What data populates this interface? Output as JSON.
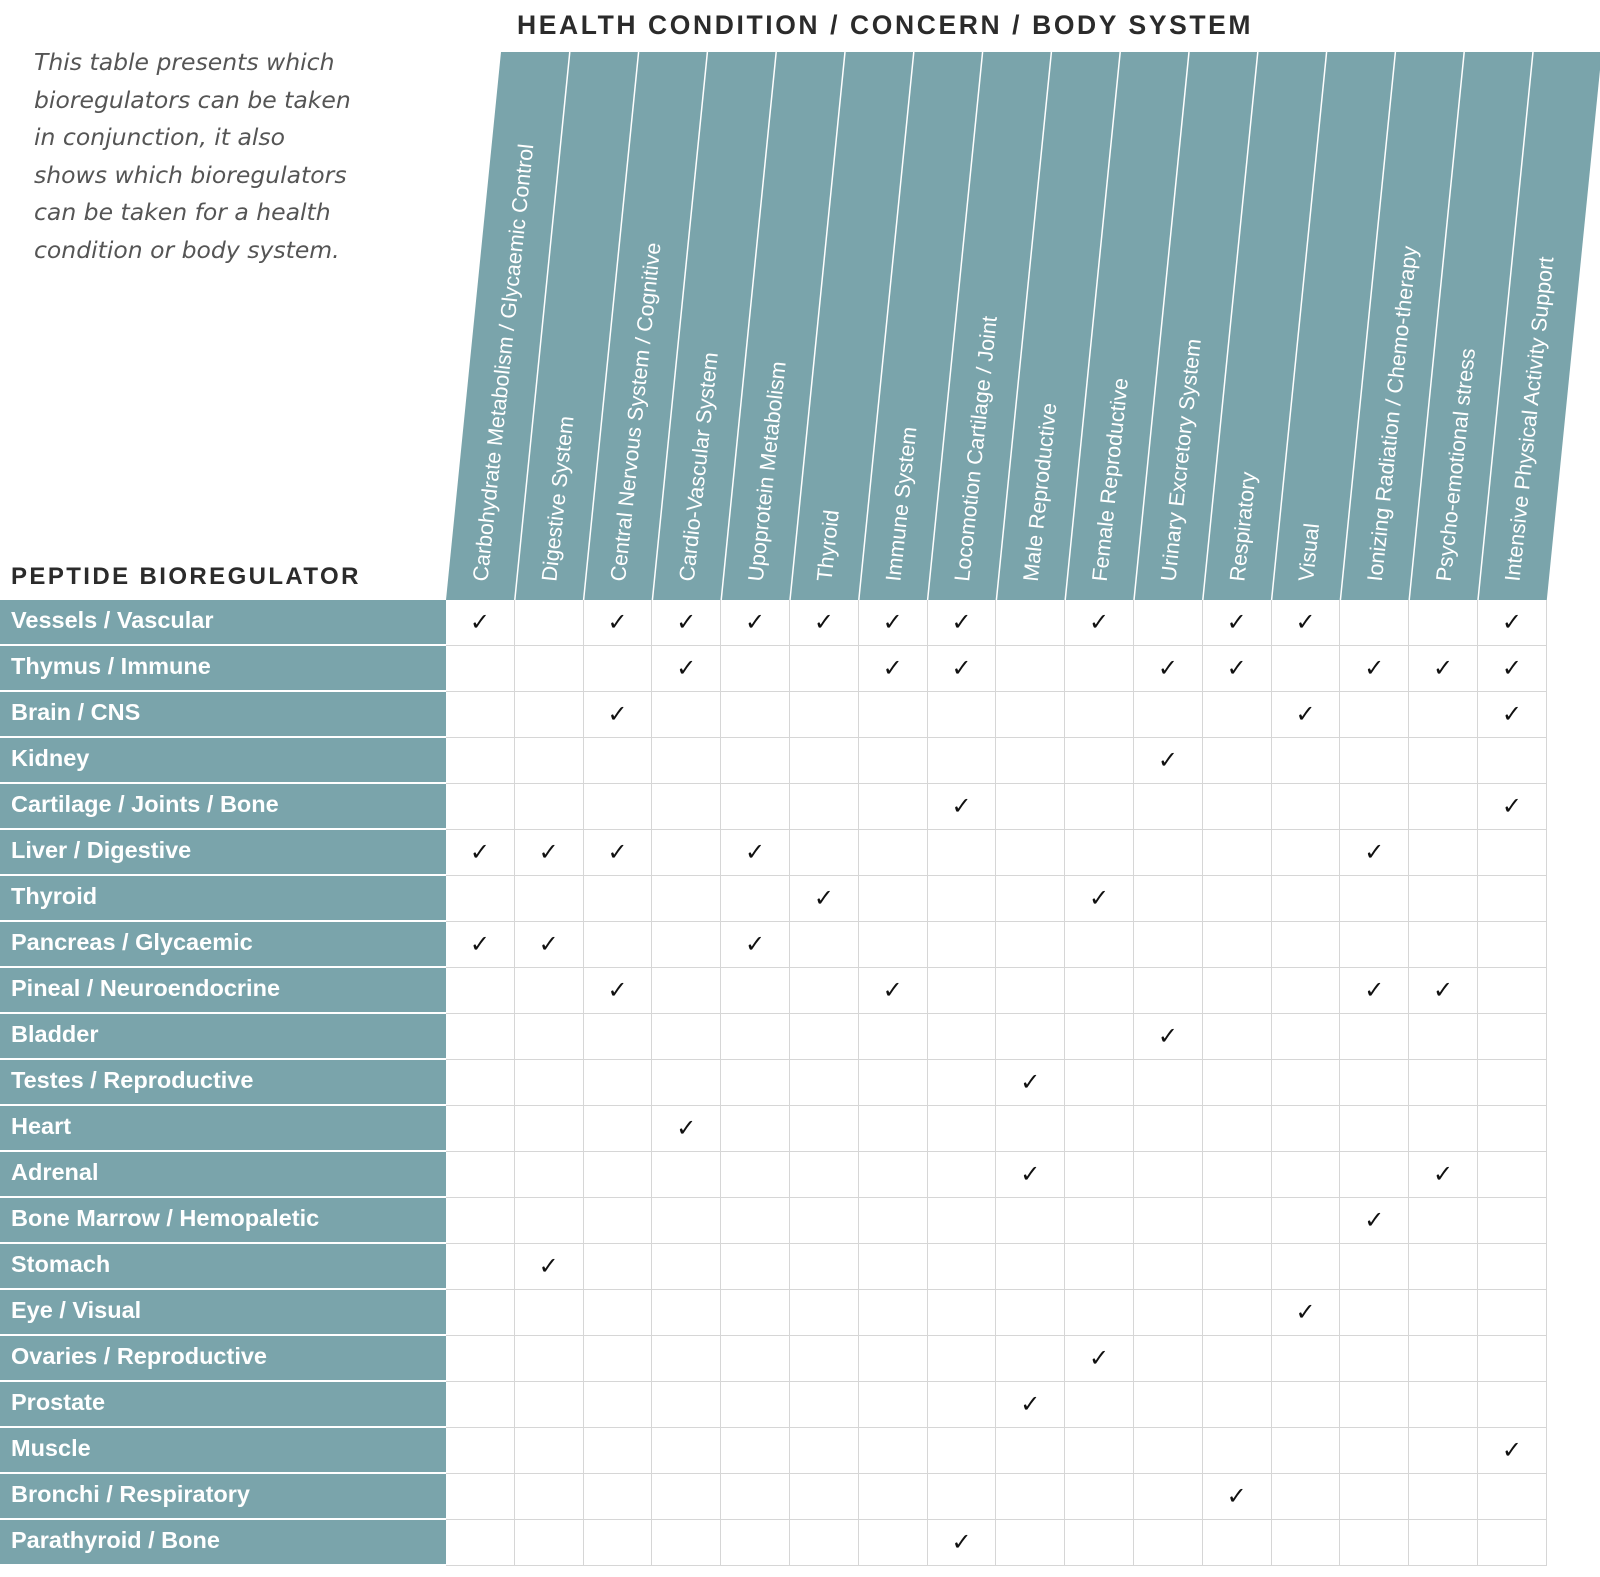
{
  "intro_text": "This table presents which bioregulators can be taken in conjunction, it also shows which bioregulators can be taken for a health condition or body system.",
  "column_heading": "HEALTH CONDITION / CONCERN / BODY SYSTEM",
  "row_heading": "PEPTIDE BIOREGULATOR",
  "check_symbol": "✓",
  "colors": {
    "header_fill": "#7aa4ab",
    "grid_line": "#d6d6d6",
    "heading_text": "#2b2b2b"
  },
  "chart_data": {
    "type": "table",
    "columns": [
      "Carbohydrate Metabolism / Glycaemic Control",
      "Digestive System",
      "Central Nervous System / Cognitive",
      "Cardio-Vascular System",
      "Upoprotein Metabolism",
      "Thyroid",
      "Immune System",
      "Locomotion Cartilage / Joint",
      "Male Reproductive",
      "Female Reproductive",
      "Urinary Excretory System",
      "Respiratory",
      "Visual",
      "Ionizing Radiation / Chemo-therapy",
      "Psycho-emotional stress",
      "Intensive Physical Activity Support"
    ],
    "rows": [
      {
        "label": "Vessels / Vascular",
        "checks": [
          1,
          0,
          1,
          1,
          1,
          1,
          1,
          1,
          0,
          1,
          0,
          1,
          1,
          0,
          0,
          1
        ]
      },
      {
        "label": "Thymus / Immune",
        "checks": [
          0,
          0,
          0,
          1,
          0,
          0,
          1,
          1,
          0,
          0,
          1,
          1,
          0,
          1,
          1,
          1
        ]
      },
      {
        "label": "Brain / CNS",
        "checks": [
          0,
          0,
          1,
          0,
          0,
          0,
          0,
          0,
          0,
          0,
          0,
          0,
          1,
          0,
          0,
          1
        ]
      },
      {
        "label": "Kidney",
        "checks": [
          0,
          0,
          0,
          0,
          0,
          0,
          0,
          0,
          0,
          0,
          1,
          0,
          0,
          0,
          0,
          0
        ]
      },
      {
        "label": "Cartilage / Joints / Bone",
        "checks": [
          0,
          0,
          0,
          0,
          0,
          0,
          0,
          1,
          0,
          0,
          0,
          0,
          0,
          0,
          0,
          1
        ]
      },
      {
        "label": "Liver / Digestive",
        "checks": [
          1,
          1,
          1,
          0,
          1,
          0,
          0,
          0,
          0,
          0,
          0,
          0,
          0,
          1,
          0,
          0
        ]
      },
      {
        "label": "Thyroid",
        "checks": [
          0,
          0,
          0,
          0,
          0,
          1,
          0,
          0,
          0,
          1,
          0,
          0,
          0,
          0,
          0,
          0
        ]
      },
      {
        "label": "Pancreas / Glycaemic",
        "checks": [
          1,
          1,
          0,
          0,
          1,
          0,
          0,
          0,
          0,
          0,
          0,
          0,
          0,
          0,
          0,
          0
        ]
      },
      {
        "label": "Pineal / Neuroendocrine",
        "checks": [
          0,
          0,
          1,
          0,
          0,
          0,
          1,
          0,
          0,
          0,
          0,
          0,
          0,
          1,
          1,
          0
        ]
      },
      {
        "label": "Bladder",
        "checks": [
          0,
          0,
          0,
          0,
          0,
          0,
          0,
          0,
          0,
          0,
          1,
          0,
          0,
          0,
          0,
          0
        ]
      },
      {
        "label": "Testes / Reproductive",
        "checks": [
          0,
          0,
          0,
          0,
          0,
          0,
          0,
          0,
          1,
          0,
          0,
          0,
          0,
          0,
          0,
          0
        ]
      },
      {
        "label": "Heart",
        "checks": [
          0,
          0,
          0,
          1,
          0,
          0,
          0,
          0,
          0,
          0,
          0,
          0,
          0,
          0,
          0,
          0
        ]
      },
      {
        "label": "Adrenal",
        "checks": [
          0,
          0,
          0,
          0,
          0,
          0,
          0,
          0,
          1,
          0,
          0,
          0,
          0,
          0,
          1,
          0
        ]
      },
      {
        "label": "Bone Marrow / Hemopaletic",
        "checks": [
          0,
          0,
          0,
          0,
          0,
          0,
          0,
          0,
          0,
          0,
          0,
          0,
          0,
          1,
          0,
          0
        ]
      },
      {
        "label": "Stomach",
        "checks": [
          0,
          1,
          0,
          0,
          0,
          0,
          0,
          0,
          0,
          0,
          0,
          0,
          0,
          0,
          0,
          0
        ]
      },
      {
        "label": "Eye / Visual",
        "checks": [
          0,
          0,
          0,
          0,
          0,
          0,
          0,
          0,
          0,
          0,
          0,
          0,
          1,
          0,
          0,
          0
        ]
      },
      {
        "label": "Ovaries / Reproductive",
        "checks": [
          0,
          0,
          0,
          0,
          0,
          0,
          0,
          0,
          0,
          1,
          0,
          0,
          0,
          0,
          0,
          0
        ]
      },
      {
        "label": "Prostate",
        "checks": [
          0,
          0,
          0,
          0,
          0,
          0,
          0,
          0,
          1,
          0,
          0,
          0,
          0,
          0,
          0,
          0
        ]
      },
      {
        "label": "Muscle",
        "checks": [
          0,
          0,
          0,
          0,
          0,
          0,
          0,
          0,
          0,
          0,
          0,
          0,
          0,
          0,
          0,
          1
        ]
      },
      {
        "label": "Bronchi / Respiratory",
        "checks": [
          0,
          0,
          0,
          0,
          0,
          0,
          0,
          0,
          0,
          0,
          0,
          1,
          0,
          0,
          0,
          0
        ]
      },
      {
        "label": "Parathyroid / Bone",
        "checks": [
          0,
          0,
          0,
          0,
          0,
          0,
          0,
          1,
          0,
          0,
          0,
          0,
          0,
          0,
          0,
          0
        ]
      }
    ]
  }
}
